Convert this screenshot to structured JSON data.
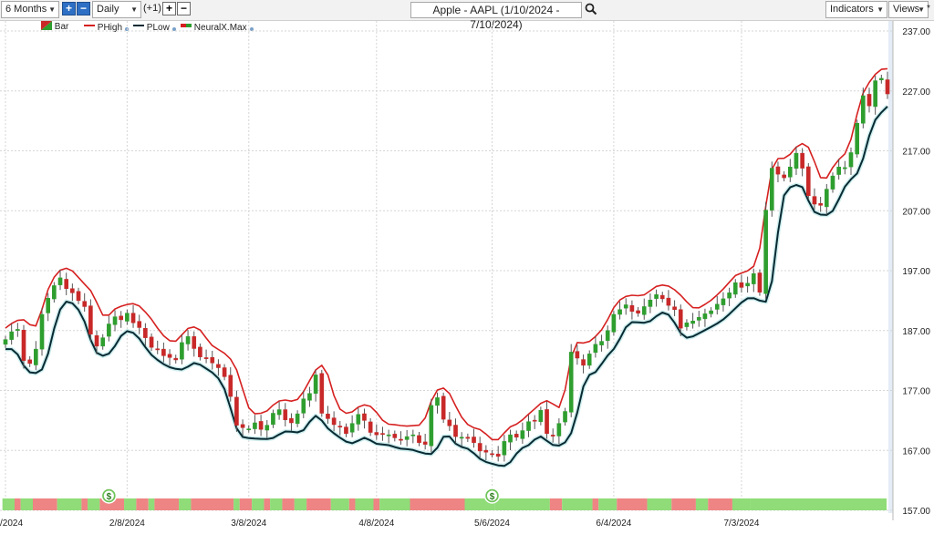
{
  "toolbar": {
    "period": "6 Months",
    "interval": "Daily",
    "offset": "(+1)",
    "title": "Apple - AAPL (1/10/2024 - 7/10/2024)",
    "indicators": "Indicators",
    "views": "Views",
    "plus_icon": "plus-icon",
    "minus_icon": "minus-icon",
    "search_icon": "search-icon"
  },
  "legend": [
    {
      "label": "Bar",
      "color": "#2e8b2e"
    },
    {
      "label": "PHigh",
      "color": "#d62020"
    },
    {
      "label": "PLow",
      "color": "#0b2e3a"
    },
    {
      "label": "NeuralX.Max",
      "color": "#d62020"
    }
  ],
  "colors": {
    "up": "#2e9e2e",
    "down": "#c82828",
    "phigh": "#d62020",
    "plow": "#082a33",
    "strip_up": "#8fdc78",
    "strip_down": "#ee8484",
    "signal": "#6fc45a"
  },
  "chart_data": {
    "type": "candlestick",
    "ylim": [
      157,
      237
    ],
    "yticks": [
      "237.00",
      "227.00",
      "217.00",
      "207.00",
      "197.00",
      "187.00",
      "177.00",
      "167.00",
      "157.00"
    ],
    "xticks": [
      "/2024",
      "2/8/2024",
      "3/8/2024",
      "4/8/2024",
      "5/6/2024",
      "6/4/2024",
      "7/3/2024"
    ],
    "xtick_index": [
      0,
      20,
      40,
      61,
      80,
      100,
      121
    ],
    "close": [
      185.5,
      186.8,
      187.2,
      182.0,
      181.5,
      183.9,
      189.7,
      192.4,
      194.5,
      195.8,
      194.0,
      193.3,
      192.0,
      191.0,
      186.4,
      184.4,
      185.8,
      188.1,
      189.3,
      188.8,
      189.9,
      188.3,
      187.5,
      185.8,
      184.2,
      183.9,
      182.8,
      182.5,
      182.1,
      185.0,
      186.0,
      184.0,
      182.6,
      182.4,
      181.6,
      180.8,
      179.3,
      176.0,
      171.2,
      170.8,
      170.6,
      171.6,
      170.5,
      171.2,
      173.2,
      173.8,
      172.1,
      171.6,
      173.1,
      175.6,
      176.5,
      179.6,
      173.2,
      172.3,
      171.3,
      170.9,
      169.8,
      171.5,
      173.0,
      172.0,
      170.0,
      169.6,
      169.7,
      169.6,
      169.1,
      168.8,
      169.3,
      169.6,
      168.3,
      168.0,
      174.5,
      175.8,
      172.2,
      171.1,
      169.3,
      169.2,
      169.0,
      168.3,
      166.9,
      166.7,
      166.4,
      166.0,
      168.5,
      169.6,
      169.2,
      170.3,
      171.8,
      171.9,
      173.7,
      169.8,
      169.4,
      171.5,
      173.5,
      183.4,
      182.4,
      181.2,
      183.1,
      184.7,
      185.2,
      187.0,
      189.7,
      190.5,
      191.3,
      190.2,
      189.9,
      191.0,
      192.1,
      193.0,
      192.3,
      191.2,
      190.5,
      187.4,
      188.3,
      188.6,
      189.2,
      189.8,
      190.3,
      191.4,
      192.3,
      193.3,
      195.0,
      194.2,
      194.9,
      196.5,
      193.4,
      207.1,
      214.1,
      213.1,
      212.5,
      214.3,
      216.6,
      214.1,
      209.5,
      208.1,
      207.9,
      210.6,
      212.8,
      214.3,
      214.2,
      216.7,
      221.6,
      226.2,
      224.5,
      228.7,
      229.1,
      226.5
    ]
  },
  "strip": [
    [
      0,
      2,
      "up"
    ],
    [
      2,
      3,
      "down"
    ],
    [
      3,
      5,
      "up"
    ],
    [
      5,
      9,
      "down"
    ],
    [
      9,
      13,
      "up"
    ],
    [
      13,
      14,
      "down"
    ],
    [
      14,
      16,
      "up"
    ],
    [
      16,
      20,
      "down"
    ],
    [
      20,
      22,
      "up"
    ],
    [
      22,
      24,
      "down"
    ],
    [
      24,
      25,
      "up"
    ],
    [
      25,
      29,
      "down"
    ],
    [
      29,
      31,
      "up"
    ],
    [
      31,
      38,
      "down"
    ],
    [
      38,
      39,
      "up"
    ],
    [
      39,
      41,
      "down"
    ],
    [
      41,
      43,
      "up"
    ],
    [
      43,
      44,
      "down"
    ],
    [
      44,
      46,
      "up"
    ],
    [
      46,
      48,
      "down"
    ],
    [
      48,
      50,
      "up"
    ],
    [
      50,
      54,
      "down"
    ],
    [
      54,
      57,
      "up"
    ],
    [
      57,
      58,
      "down"
    ],
    [
      58,
      61,
      "up"
    ],
    [
      61,
      62,
      "down"
    ],
    [
      62,
      67,
      "up"
    ],
    [
      67,
      76,
      "down"
    ],
    [
      76,
      81,
      "up"
    ],
    [
      81,
      90,
      "up"
    ],
    [
      90,
      92,
      "down"
    ],
    [
      92,
      97,
      "up"
    ],
    [
      97,
      98,
      "down"
    ],
    [
      98,
      101,
      "up"
    ],
    [
      101,
      106,
      "down"
    ],
    [
      106,
      110,
      "up"
    ],
    [
      110,
      114,
      "down"
    ],
    [
      114,
      116,
      "up"
    ],
    [
      116,
      120,
      "down"
    ],
    [
      120,
      123,
      "up"
    ],
    [
      123,
      146,
      "up"
    ]
  ],
  "signals": [
    {
      "index": 17,
      "label": "$"
    },
    {
      "index": 80,
      "label": "$"
    }
  ]
}
